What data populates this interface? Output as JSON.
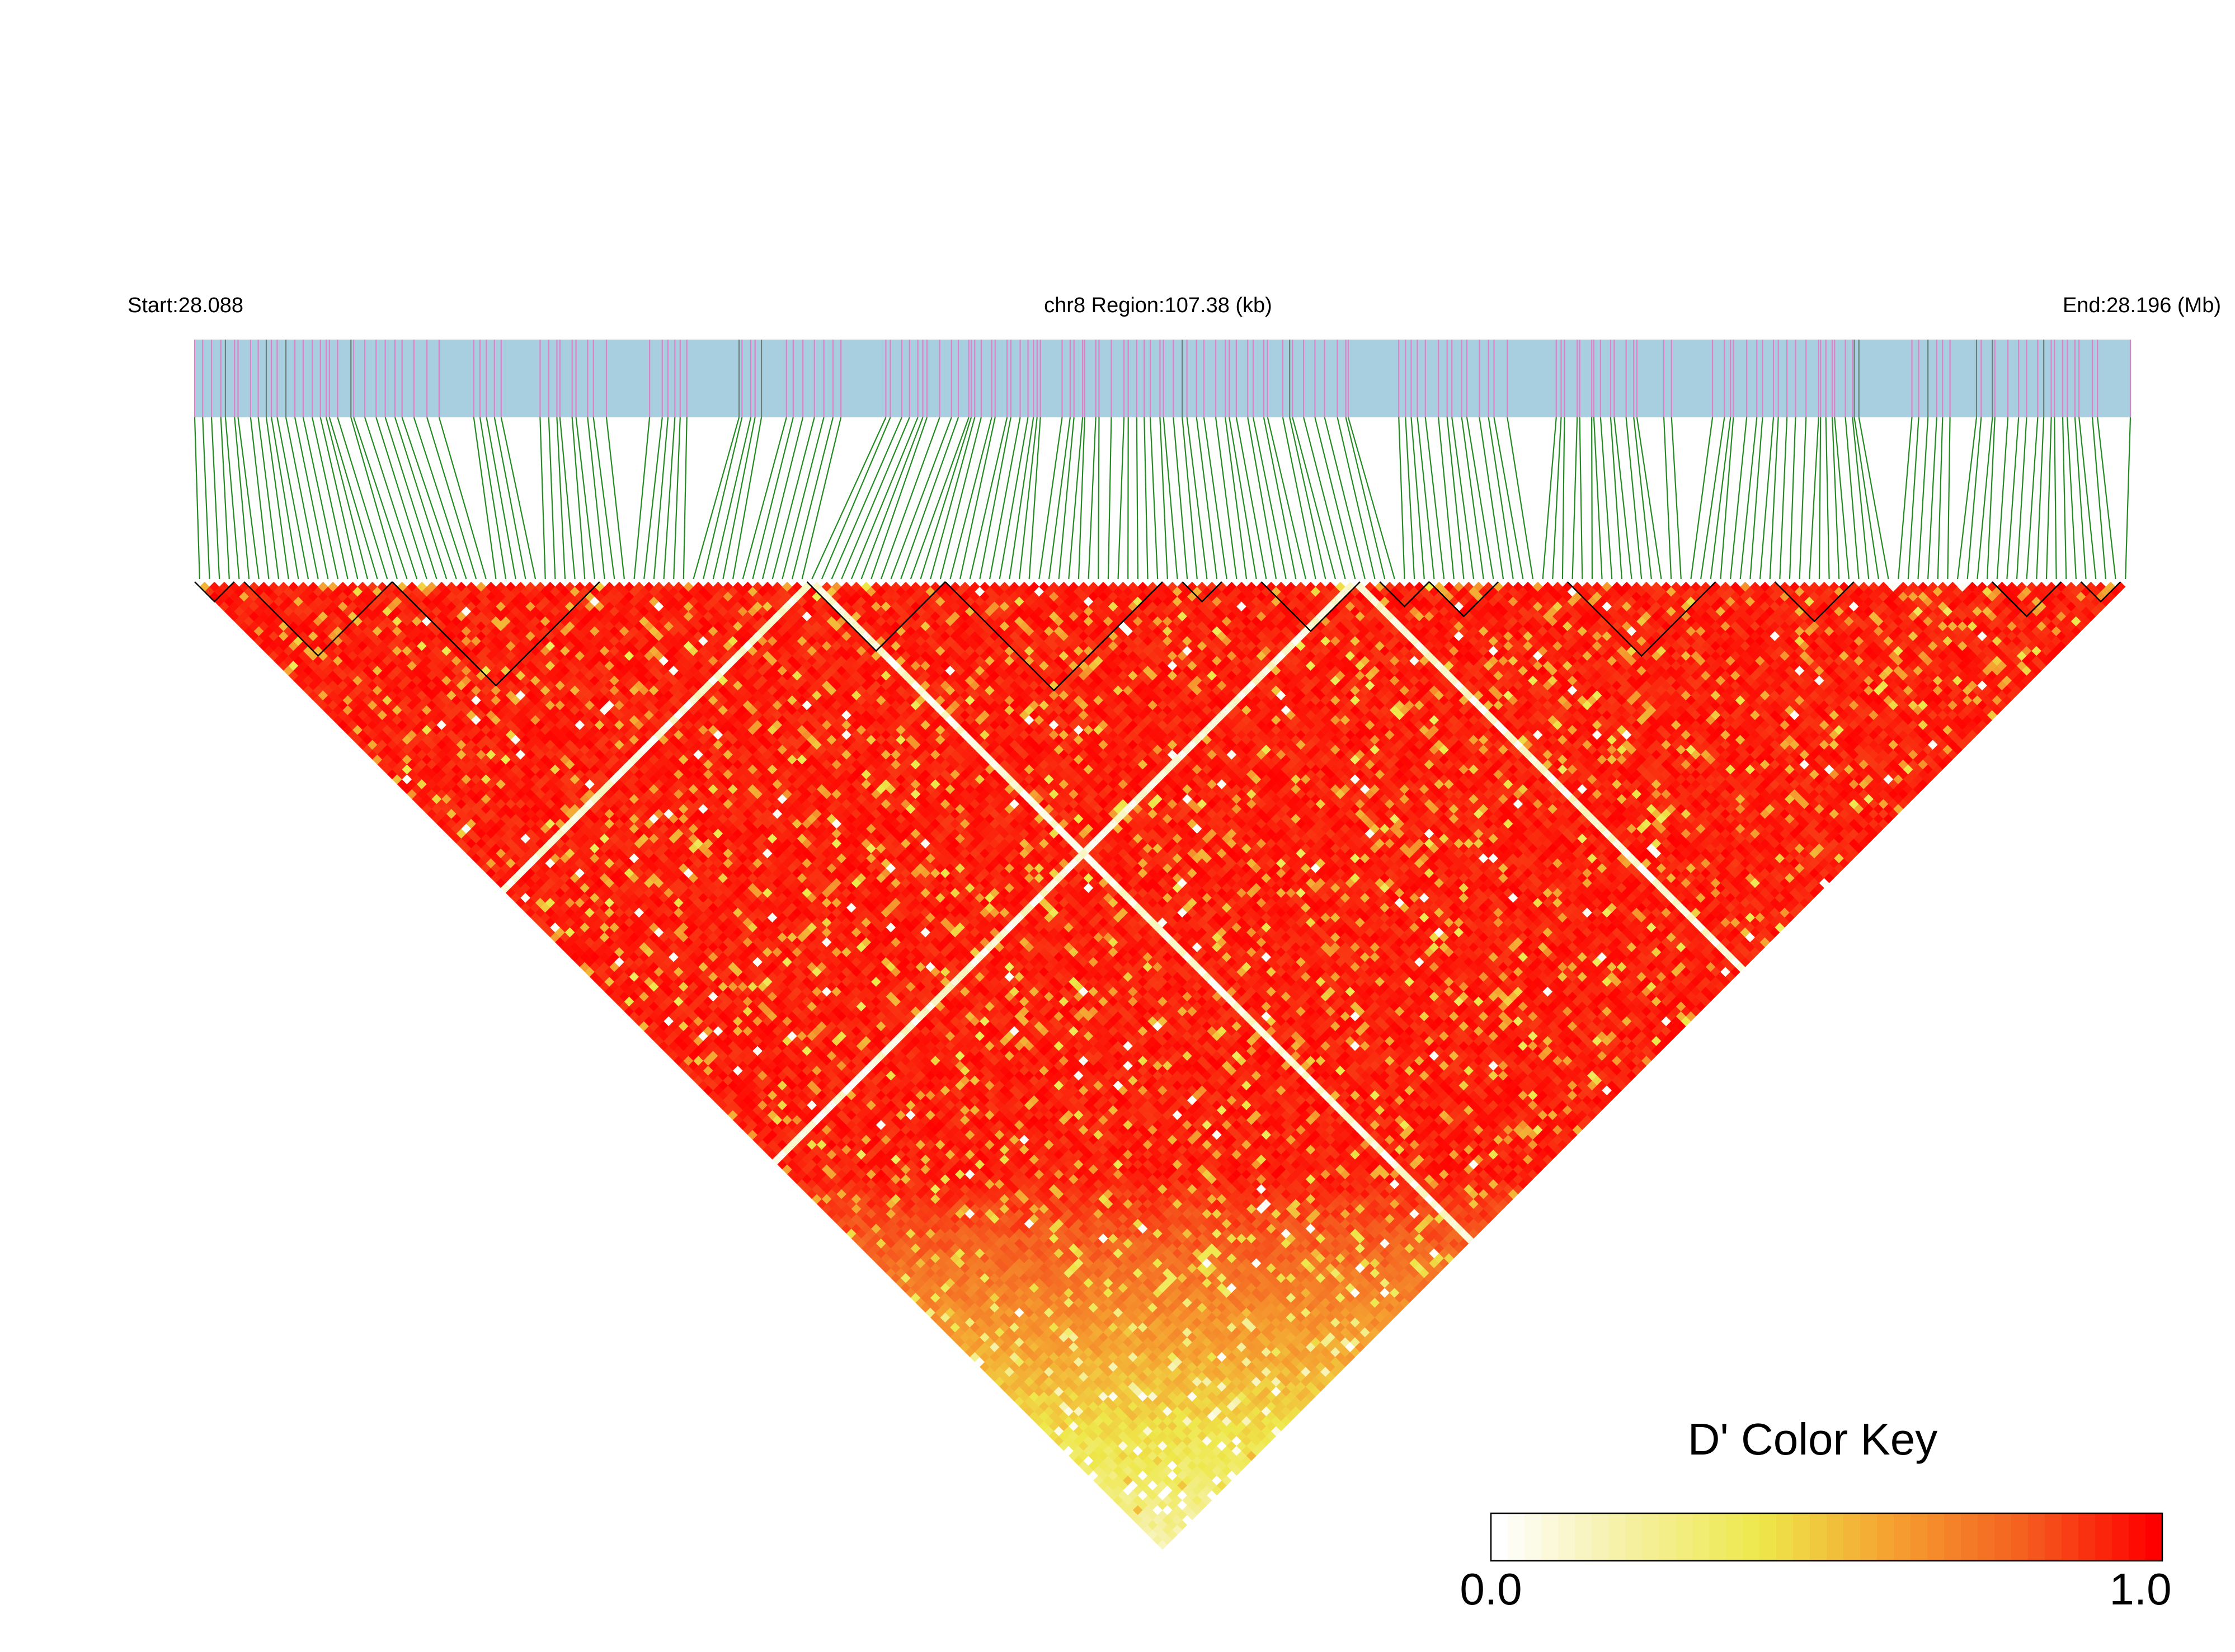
{
  "chart_data": {
    "type": "heatmap",
    "subtype": "LD triangle heatmap (D')",
    "start_label": "Start:28.088",
    "region_label": "chr8 Region:107.38 (kb)",
    "end_label": "End:28.196 (Mb)",
    "region_start_mb": 28.088,
    "region_end_mb": 28.196,
    "region_size_kb": 107.38,
    "snp_count": 196,
    "legend_title": "D' Color Key",
    "legend_min_label": "0.0",
    "legend_max_label": "1.0",
    "color_scale": [
      "#ffffff",
      "#f5f0a0",
      "#eee84a",
      "#f5a030",
      "#f56020",
      "#ff0000"
    ],
    "track_color": "#a8cfe0",
    "marker_color": "#e080c8",
    "connector_color": "#228b22",
    "block_outline_color": "#000000",
    "haplotype_blocks_snp_ranges": [
      [
        0,
        3
      ],
      [
        5,
        19
      ],
      [
        20,
        40
      ],
      [
        62,
        75
      ],
      [
        76,
        97
      ],
      [
        100,
        103
      ],
      [
        108,
        117
      ],
      [
        120,
        124
      ],
      [
        125,
        131
      ],
      [
        139,
        153
      ],
      [
        160,
        167
      ],
      [
        182,
        188
      ],
      [
        191,
        194
      ]
    ]
  }
}
